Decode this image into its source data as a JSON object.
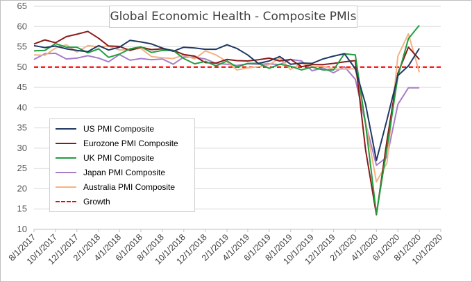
{
  "chart_data": {
    "type": "line",
    "title": "Global Economic Health - Composite PMIs",
    "xlabel": "",
    "ylabel": "",
    "ylim": [
      10,
      65
    ],
    "yticks": [
      10,
      15,
      20,
      25,
      30,
      35,
      40,
      45,
      50,
      55,
      60,
      65
    ],
    "xlim": [
      "2017-08-01",
      "2020-10-01"
    ],
    "xticks": [
      "8/1/2017",
      "10/1/2017",
      "12/1/2017",
      "2/1/2018",
      "4/1/2018",
      "6/1/2018",
      "8/1/2018",
      "10/1/2018",
      "12/1/2018",
      "2/1/2019",
      "4/1/2019",
      "6/1/2019",
      "8/1/2019",
      "10/1/2019",
      "12/1/2019",
      "2/1/2020",
      "4/1/2020",
      "6/1/2020",
      "8/1/2020",
      "10/1/2020"
    ],
    "grid": "horizontal",
    "legend_position": "lower-left",
    "dates": [
      "2017-08-01",
      "2017-09-01",
      "2017-10-01",
      "2017-11-01",
      "2017-12-01",
      "2018-01-01",
      "2018-02-01",
      "2018-03-01",
      "2018-04-01",
      "2018-05-01",
      "2018-06-01",
      "2018-07-01",
      "2018-08-01",
      "2018-09-01",
      "2018-10-01",
      "2018-11-01",
      "2018-12-01",
      "2019-01-01",
      "2019-02-01",
      "2019-03-01",
      "2019-04-01",
      "2019-05-01",
      "2019-06-01",
      "2019-07-01",
      "2019-08-01",
      "2019-09-01",
      "2019-10-01",
      "2019-11-01",
      "2019-12-01",
      "2020-01-01",
      "2020-02-01",
      "2020-03-01",
      "2020-04-01",
      "2020-05-01",
      "2020-06-01",
      "2020-07-01",
      "2020-08-01"
    ],
    "series": [
      {
        "name": "US PMI Composite",
        "color": "#1f3864",
        "values": [
          55.3,
          54.8,
          55.2,
          54.5,
          54.1,
          53.8,
          55.3,
          54.2,
          54.9,
          56.6,
          56.2,
          55.7,
          54.7,
          53.9,
          54.9,
          54.7,
          54.4,
          54.4,
          55.5,
          54.6,
          53.0,
          50.9,
          51.5,
          52.6,
          50.7,
          51.0,
          50.9,
          52.0,
          52.7,
          53.3,
          49.6,
          40.9,
          27.0,
          37.0,
          47.9,
          50.3,
          54.6
        ]
      },
      {
        "name": "Eurozone PMI Composite",
        "color": "#8b1a1a",
        "values": [
          55.7,
          56.7,
          56.0,
          57.5,
          58.1,
          58.8,
          57.1,
          55.2,
          55.1,
          54.1,
          54.9,
          54.3,
          54.5,
          54.1,
          53.1,
          52.7,
          51.1,
          51.0,
          51.9,
          51.6,
          51.5,
          51.8,
          52.2,
          51.5,
          51.9,
          50.1,
          50.6,
          50.6,
          50.9,
          51.3,
          51.6,
          29.7,
          13.6,
          31.9,
          48.5,
          54.9,
          51.9
        ]
      },
      {
        "name": "UK PMI Composite",
        "color": "#1e9e3e",
        "values": [
          54.0,
          54.1,
          55.8,
          54.9,
          54.9,
          53.5,
          54.5,
          52.4,
          53.2,
          54.5,
          55.0,
          53.6,
          54.1,
          54.1,
          52.1,
          50.8,
          51.4,
          50.3,
          51.5,
          50.0,
          50.9,
          50.9,
          49.7,
          50.7,
          50.2,
          49.3,
          50.0,
          49.3,
          49.3,
          53.3,
          53.0,
          36.0,
          13.8,
          30.0,
          47.7,
          57.0,
          60.3
        ]
      },
      {
        "name": "Japan PMI Composite",
        "color": "#a67cc9",
        "values": [
          51.9,
          53.3,
          53.4,
          52.0,
          52.2,
          52.8,
          52.2,
          51.3,
          53.1,
          51.7,
          52.1,
          51.8,
          52.0,
          50.7,
          52.5,
          52.4,
          52.0,
          50.9,
          50.7,
          50.4,
          50.8,
          50.7,
          50.8,
          50.6,
          51.9,
          51.5,
          49.1,
          49.8,
          48.6,
          50.1,
          47.0,
          36.2,
          25.8,
          27.8,
          40.8,
          44.9,
          44.9
        ]
      },
      {
        "name": "Australia PMI Composite",
        "color": "#f4b183",
        "values": [
          53.0,
          52.9,
          54.7,
          55.5,
          53.7,
          55.3,
          55.0,
          55.2,
          54.2,
          54.3,
          54.6,
          52.6,
          52.3,
          52.1,
          53.0,
          52.0,
          54.0,
          53.0,
          51.3,
          49.3,
          49.8,
          50.1,
          50.6,
          52.2,
          49.4,
          51.0,
          50.1,
          50.2,
          49.5,
          49.5,
          49.6,
          36.5,
          21.7,
          26.4,
          52.7,
          58.2,
          48.7
        ]
      }
    ],
    "reference_lines": [
      {
        "name": "Growth",
        "y": 50,
        "color": "#ff0000",
        "style": "dashed"
      }
    ]
  }
}
